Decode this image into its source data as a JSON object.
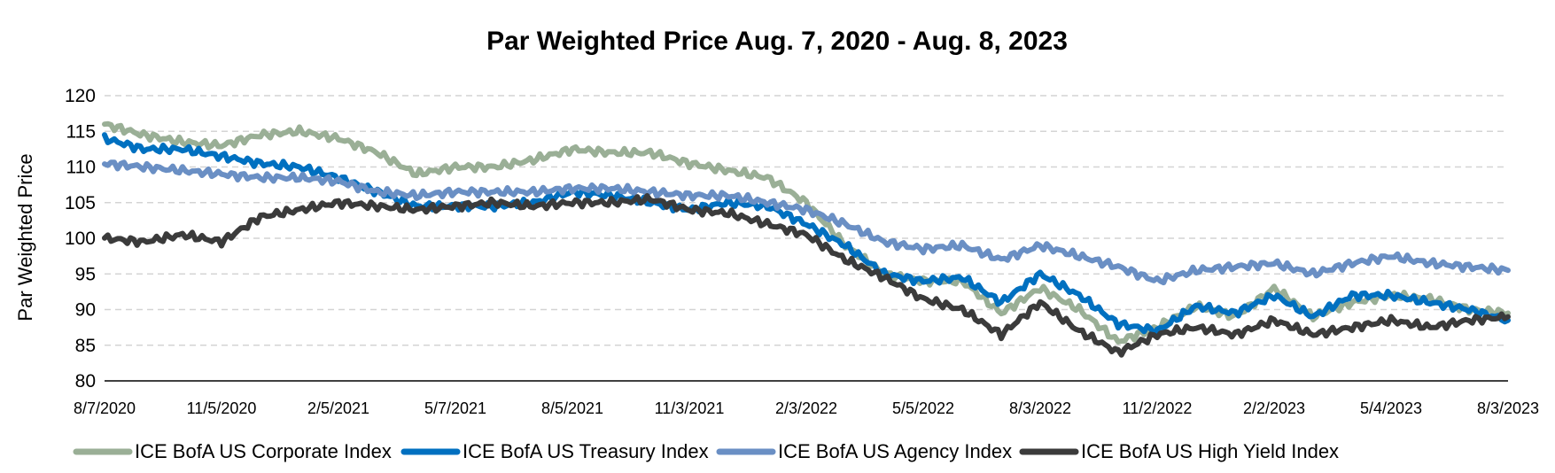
{
  "chart_data": {
    "type": "line",
    "title": "Par Weighted Price Aug. 7, 2020 - Aug. 8, 2023",
    "xlabel": "",
    "ylabel": "Par Weighted Price",
    "ylim": [
      80,
      120
    ],
    "yticks": [
      80,
      85,
      90,
      95,
      100,
      105,
      110,
      115,
      120
    ],
    "grid": true,
    "legend_position": "bottom",
    "x_tick_labels": [
      "8/7/2020",
      "11/5/2020",
      "2/5/2021",
      "5/7/2021",
      "8/5/2021",
      "11/3/2021",
      "2/3/2022",
      "5/5/2022",
      "8/3/2022",
      "11/2/2022",
      "2/2/2023",
      "5/4/2023",
      "8/3/2023"
    ],
    "x": [
      "8/7/2020",
      "9/7/2020",
      "10/7/2020",
      "11/5/2020",
      "12/5/2020",
      "1/5/2021",
      "2/5/2021",
      "3/7/2021",
      "4/7/2021",
      "5/7/2021",
      "6/7/2021",
      "7/7/2021",
      "8/5/2021",
      "9/5/2021",
      "10/5/2021",
      "11/3/2021",
      "12/3/2021",
      "1/3/2022",
      "2/3/2022",
      "3/3/2022",
      "4/3/2022",
      "5/5/2022",
      "6/5/2022",
      "7/5/2022",
      "8/3/2022",
      "9/3/2022",
      "10/3/2022",
      "11/2/2022",
      "12/2/2022",
      "1/2/2023",
      "2/2/2023",
      "3/2/2023",
      "4/2/2023",
      "5/4/2023",
      "6/4/2023",
      "7/4/2023",
      "8/3/2023"
    ],
    "series": [
      {
        "name": "ICE BofA US Corporate Index",
        "color": "#9aaf96",
        "values": [
          116,
          114.5,
          113.5,
          113,
          114.5,
          115,
          114,
          112,
          109,
          110,
          110,
          111,
          112.5,
          112,
          112,
          110.5,
          109.5,
          108.5,
          105,
          99,
          95,
          94,
          94,
          89.5,
          93,
          90,
          85.5,
          87.5,
          90.5,
          89,
          93,
          89,
          91,
          92,
          91.5,
          90,
          89.5
        ]
      },
      {
        "name": "ICE BofA US Treasury Index",
        "color": "#0070c0",
        "values": [
          114,
          112.5,
          112.5,
          111.5,
          110.5,
          110,
          108.5,
          106.5,
          104.5,
          104.5,
          104.5,
          105,
          106.5,
          106,
          105,
          104,
          105,
          104.5,
          102,
          99,
          95,
          94,
          94.5,
          91,
          95,
          92,
          88,
          87,
          90.5,
          89.5,
          92,
          89,
          92,
          92,
          91,
          90,
          88.5
        ]
      },
      {
        "name": "ICE BofA US Agency Index",
        "color": "#6a8fc4",
        "values": [
          110.5,
          110,
          109.5,
          109,
          108.5,
          108.5,
          108,
          106.5,
          106,
          106.5,
          106.5,
          106.5,
          107,
          107,
          106.5,
          106,
          106,
          105,
          104,
          102,
          99.5,
          98.5,
          99,
          97,
          99,
          97.5,
          96,
          94,
          95.5,
          96,
          96.5,
          95,
          96.5,
          97.5,
          96.5,
          96,
          95.5
        ]
      },
      {
        "name": "ICE BofA US High Yield Index",
        "color": "#3b3b3b",
        "values": [
          100,
          99.5,
          100.5,
          99.5,
          103,
          104,
          105,
          104.5,
          104,
          104.5,
          105,
          104.5,
          105,
          105,
          105.5,
          104,
          103.5,
          102,
          100.5,
          97,
          94.5,
          91.5,
          90,
          86.5,
          91,
          87,
          84,
          86.5,
          87.5,
          86.5,
          88.5,
          86.5,
          87.5,
          88.5,
          87.5,
          88.5,
          89
        ]
      }
    ]
  }
}
